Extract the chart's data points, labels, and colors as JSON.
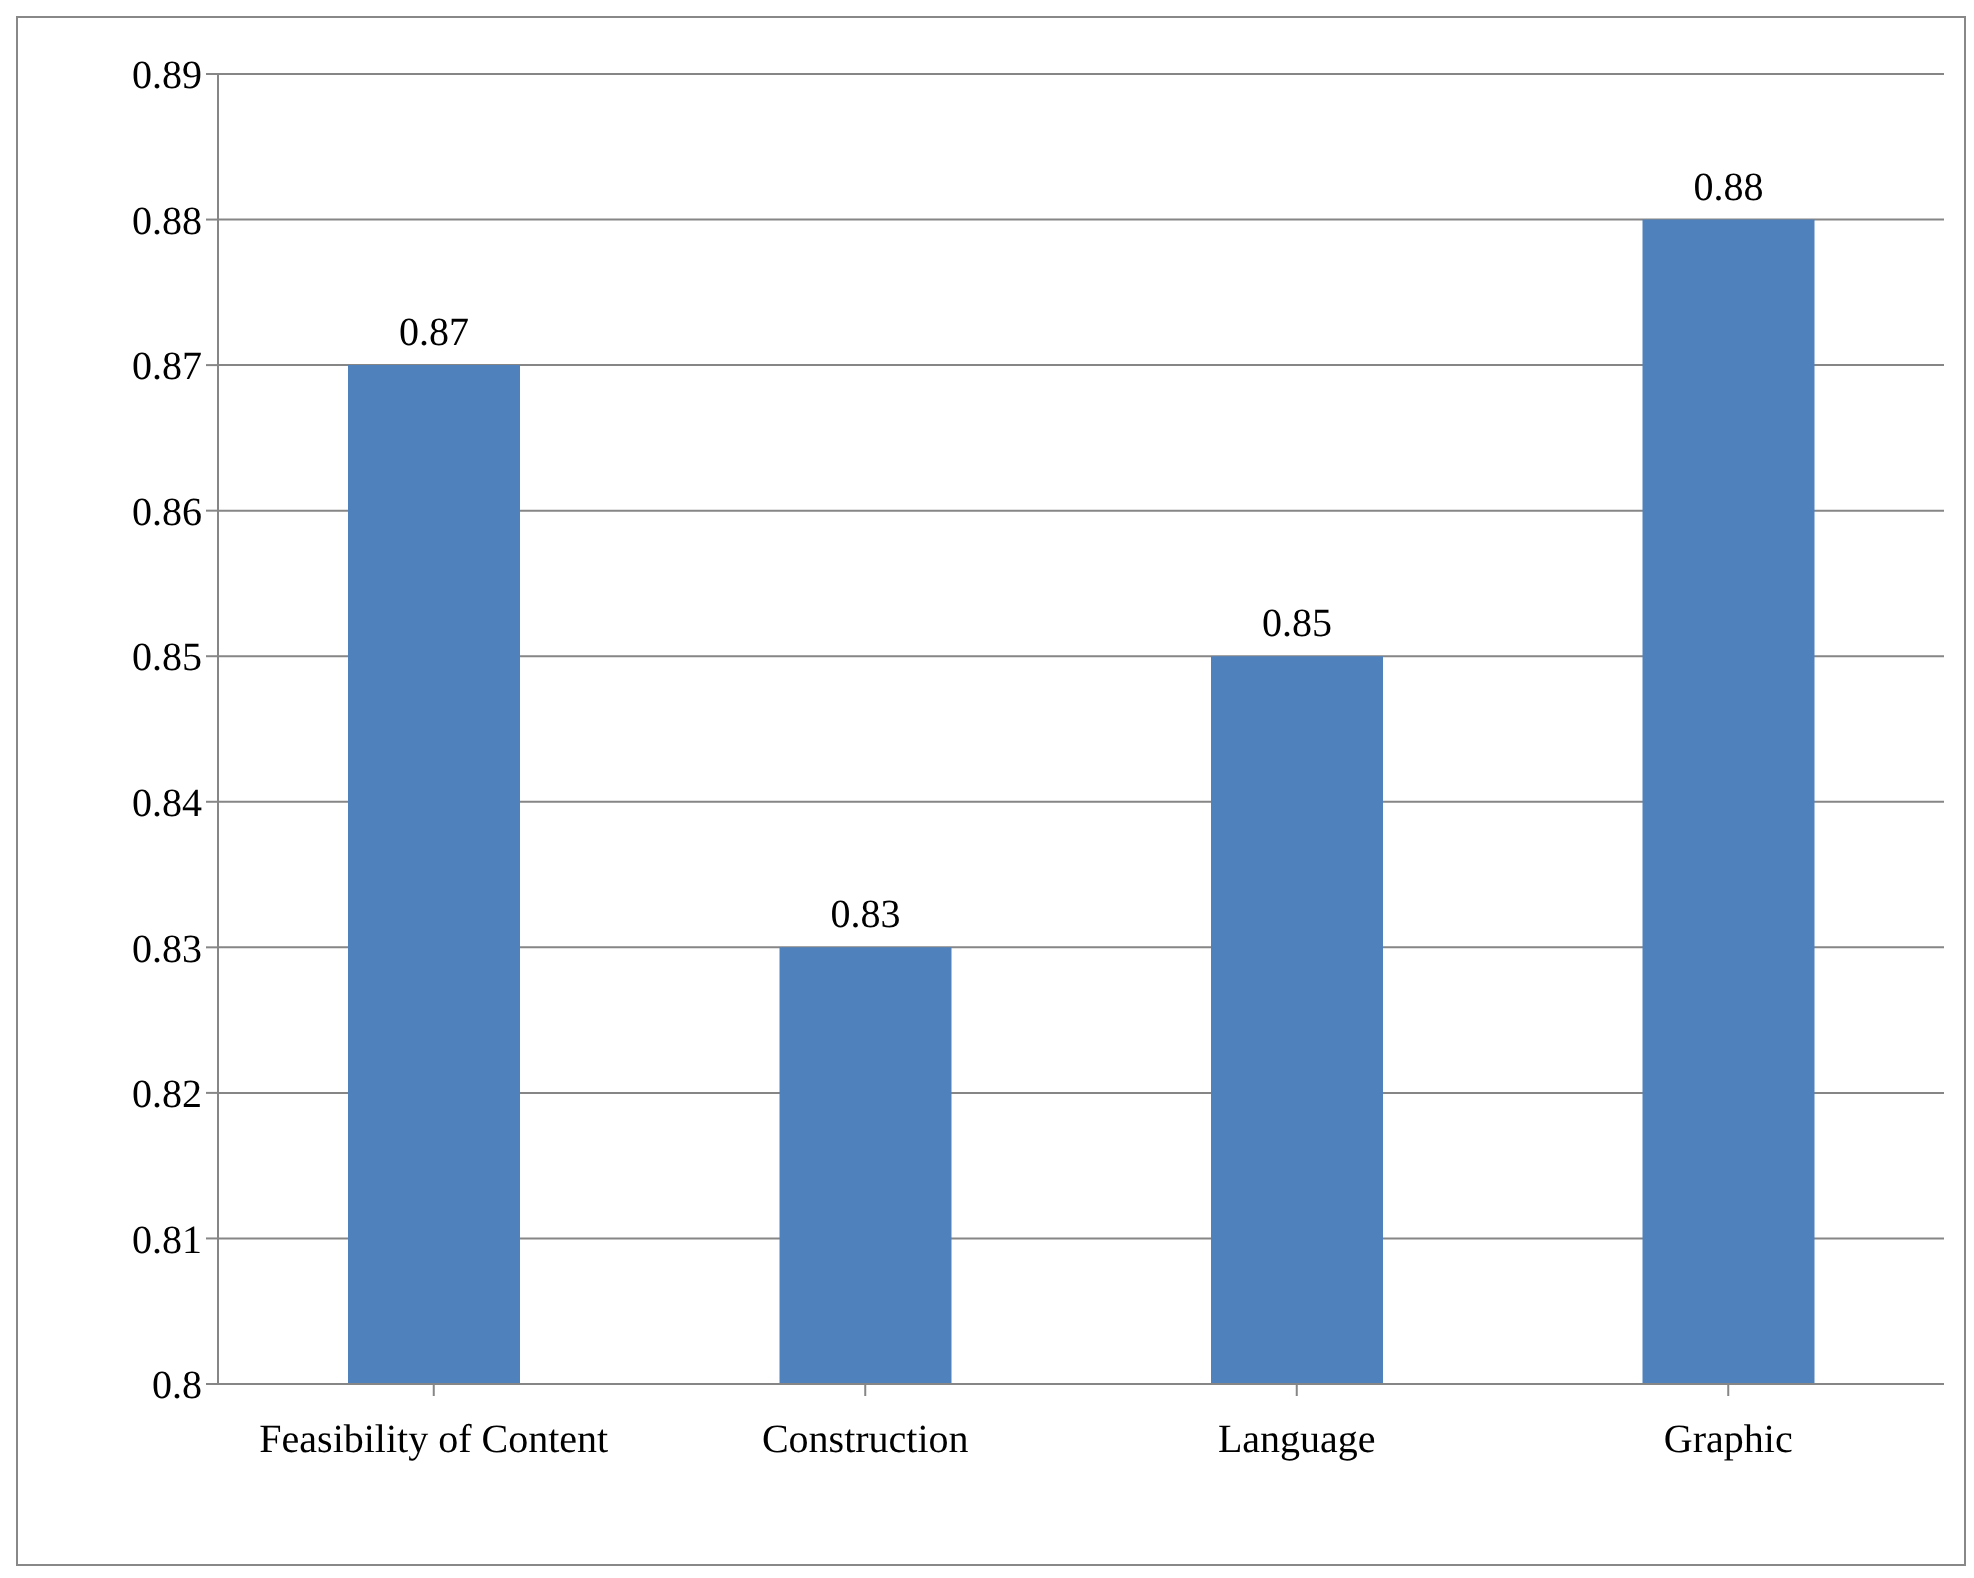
{
  "chart_data": {
    "type": "bar",
    "categories": [
      "Feasibility of Content",
      "Construction",
      "Language",
      "Graphic"
    ],
    "values": [
      0.87,
      0.83,
      0.85,
      0.88
    ],
    "color": "#4f81bd",
    "ylim": [
      0.8,
      0.89
    ],
    "yticks": [
      0.8,
      0.81,
      0.82,
      0.83,
      0.84,
      0.85,
      0.86,
      0.87,
      0.88,
      0.89
    ],
    "grid": "y",
    "data_labels": true
  }
}
